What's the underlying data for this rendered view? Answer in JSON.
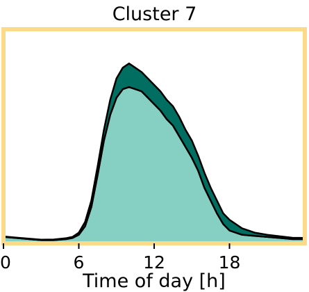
{
  "chart_data": {
    "type": "area",
    "title": "Cluster 7",
    "xlabel": "Time of day [h]",
    "ylabel": "",
    "xlim": [
      0,
      24
    ],
    "ylim": [
      0,
      1
    ],
    "x_ticks": [
      0,
      6,
      12,
      18
    ],
    "grid": false,
    "frame_color": "#FBDB8A",
    "stacked": true,
    "series": [
      {
        "color": "#86D0C3",
        "x": [
          0,
          1,
          2,
          3,
          4,
          5,
          5.5,
          6,
          6.5,
          7,
          7.5,
          8,
          8.5,
          9,
          9.5,
          10,
          10.5,
          11,
          11.5,
          12,
          12.5,
          13,
          13.5,
          14,
          14.5,
          15,
          15.5,
          16,
          16.5,
          17,
          17.5,
          18,
          19,
          20,
          21,
          22,
          23,
          24
        ],
        "values": [
          0.03,
          0.025,
          0.02,
          0.015,
          0.015,
          0.02,
          0.025,
          0.04,
          0.08,
          0.17,
          0.32,
          0.48,
          0.6,
          0.68,
          0.72,
          0.73,
          0.72,
          0.71,
          0.68,
          0.65,
          0.62,
          0.58,
          0.55,
          0.5,
          0.45,
          0.4,
          0.34,
          0.26,
          0.2,
          0.14,
          0.09,
          0.06,
          0.04,
          0.035,
          0.03,
          0.025,
          0.02,
          0.02
        ]
      },
      {
        "color": "#006E61",
        "x": [
          0,
          1,
          2,
          3,
          4,
          5,
          5.5,
          6,
          6.5,
          7,
          7.5,
          8,
          8.5,
          9,
          9.5,
          10,
          10.5,
          11,
          11.5,
          12,
          12.5,
          13,
          13.5,
          14,
          14.5,
          15,
          15.5,
          16,
          16.5,
          17,
          17.5,
          18,
          19,
          20,
          21,
          22,
          23,
          24
        ],
        "values": [
          0.002,
          0.002,
          0.002,
          0.002,
          0.003,
          0.004,
          0.005,
          0.01,
          0.02,
          0.03,
          0.04,
          0.05,
          0.07,
          0.09,
          0.1,
          0.11,
          0.1,
          0.09,
          0.09,
          0.09,
          0.09,
          0.09,
          0.09,
          0.09,
          0.08,
          0.08,
          0.07,
          0.07,
          0.06,
          0.06,
          0.05,
          0.05,
          0.03,
          0.015,
          0.01,
          0.008,
          0.006,
          0.005
        ]
      }
    ]
  }
}
